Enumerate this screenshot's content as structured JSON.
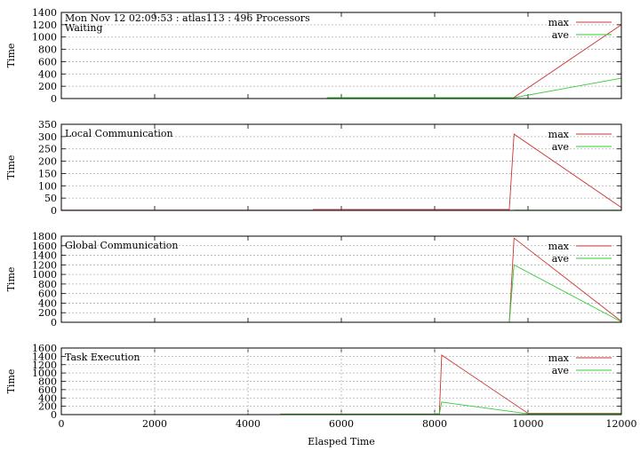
{
  "header": "Mon Nov 12 02:09:53 : atlas113 : 496 Processors",
  "x_axis_label": "Elasped Time",
  "chart_data": [
    {
      "type": "line",
      "title": "Waiting",
      "ylabel": "Time",
      "xlim": [
        0,
        12000
      ],
      "ylim": [
        0,
        1400
      ],
      "yticks": [
        0,
        200,
        400,
        600,
        800,
        1000,
        1200,
        1400
      ],
      "grid": "horizontal",
      "legend_position": "top-right",
      "series": [
        {
          "name": "max",
          "color": "#cc3333",
          "points": [
            [
              0,
              0
            ],
            [
              5700,
              0
            ],
            [
              5700,
              15
            ],
            [
              9700,
              15
            ],
            [
              9700,
              20
            ],
            [
              12000,
              1200
            ]
          ]
        },
        {
          "name": "ave",
          "color": "#33cc33",
          "points": [
            [
              0,
              0
            ],
            [
              5700,
              0
            ],
            [
              5700,
              14
            ],
            [
              9700,
              14
            ],
            [
              12000,
              330
            ]
          ]
        }
      ]
    },
    {
      "type": "line",
      "title": "Local Communication",
      "ylabel": "Time",
      "xlim": [
        0,
        12000
      ],
      "ylim": [
        0,
        350
      ],
      "yticks": [
        0,
        50,
        100,
        150,
        200,
        250,
        300,
        350
      ],
      "grid": "horizontal",
      "legend_position": "top-right",
      "series": [
        {
          "name": "max",
          "color": "#cc3333",
          "points": [
            [
              0,
              1
            ],
            [
              5400,
              1
            ],
            [
              5400,
              4
            ],
            [
              9600,
              4
            ],
            [
              9600,
              6
            ],
            [
              9700,
              310
            ],
            [
              12000,
              12
            ]
          ]
        },
        {
          "name": "ave",
          "color": "#33cc33",
          "points": [
            [
              0,
              0
            ],
            [
              9700,
              0
            ],
            [
              9700,
              1
            ],
            [
              12000,
              1
            ]
          ]
        }
      ]
    },
    {
      "type": "line",
      "title": "Global Communication",
      "ylabel": "Time",
      "xlim": [
        0,
        12000
      ],
      "ylim": [
        0,
        1800
      ],
      "yticks": [
        0,
        200,
        400,
        600,
        800,
        1000,
        1200,
        1400,
        1600,
        1800
      ],
      "grid": "horizontal",
      "legend_position": "top-right",
      "series": [
        {
          "name": "max",
          "color": "#cc3333",
          "points": [
            [
              0,
              0
            ],
            [
              9600,
              0
            ],
            [
              9700,
              1760
            ],
            [
              12000,
              20
            ]
          ]
        },
        {
          "name": "ave",
          "color": "#33cc33",
          "points": [
            [
              0,
              0
            ],
            [
              9600,
              0
            ],
            [
              9700,
              1200
            ],
            [
              12000,
              10
            ]
          ]
        }
      ]
    },
    {
      "type": "line",
      "title": "Task Execution",
      "ylabel": "Time",
      "xlabel": "Elasped Time",
      "xlim": [
        0,
        12000
      ],
      "xticks": [
        0,
        2000,
        4000,
        6000,
        8000,
        10000,
        12000
      ],
      "ylim": [
        0,
        1600
      ],
      "yticks": [
        0,
        200,
        400,
        600,
        800,
        1000,
        1200,
        1400,
        1600
      ],
      "grid": "both",
      "legend_position": "top-right",
      "series": [
        {
          "name": "max",
          "color": "#cc3333",
          "points": [
            [
              0,
              0
            ],
            [
              4700,
              0
            ],
            [
              4700,
              15
            ],
            [
              8000,
              15
            ],
            [
              8100,
              20
            ],
            [
              8150,
              1430
            ],
            [
              10000,
              30
            ],
            [
              12000,
              30
            ]
          ]
        },
        {
          "name": "ave",
          "color": "#33cc33",
          "points": [
            [
              0,
              0
            ],
            [
              4700,
              0
            ],
            [
              4700,
              10
            ],
            [
              8000,
              10
            ],
            [
              8100,
              20
            ],
            [
              8150,
              300
            ],
            [
              10000,
              20
            ],
            [
              12000,
              20
            ]
          ]
        }
      ]
    }
  ]
}
